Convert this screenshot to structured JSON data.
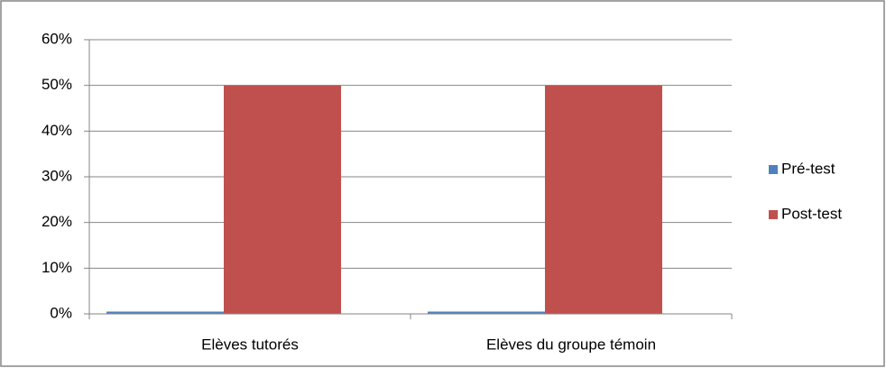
{
  "chart_data": {
    "type": "bar",
    "categories": [
      "Elèves tutorés",
      "Elèves du groupe témoin"
    ],
    "series": [
      {
        "name": "Pré-test",
        "color": "#4f81bd",
        "values": [
          0.5,
          0.5
        ]
      },
      {
        "name": "Post-test",
        "color": "#c0504d",
        "values": [
          50,
          50
        ]
      }
    ],
    "ylim": [
      0,
      60
    ],
    "yticks": [
      {
        "value": 0,
        "label": "0%"
      },
      {
        "value": 10,
        "label": "10%"
      },
      {
        "value": 20,
        "label": "20%"
      },
      {
        "value": 30,
        "label": "30%"
      },
      {
        "value": 40,
        "label": "40%"
      },
      {
        "value": 50,
        "label": "50%"
      },
      {
        "value": 60,
        "label": "60%"
      }
    ],
    "grid": true,
    "legend": "right"
  }
}
